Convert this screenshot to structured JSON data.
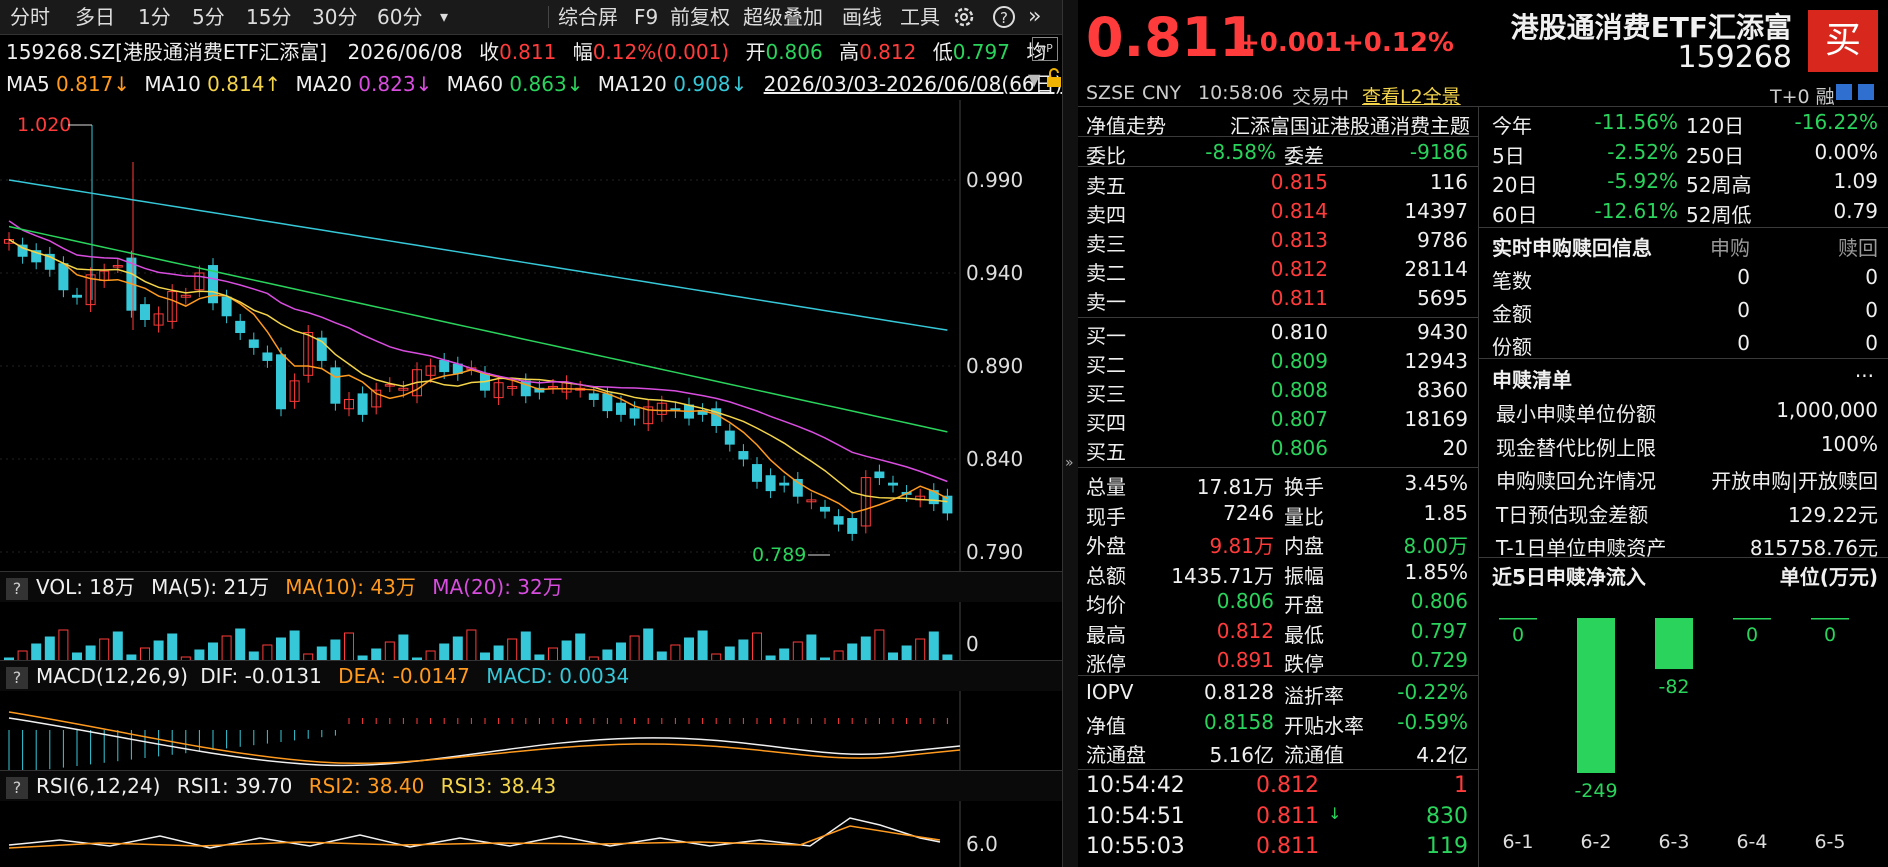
{
  "toolbar": {
    "items": [
      "分时",
      "多日",
      "1分",
      "5分",
      "15分",
      "30分",
      "60分",
      "▾",
      "综合屏",
      "F9",
      "前复权",
      "超级叠加",
      "画线",
      "工具"
    ]
  },
  "quote_line": {
    "code": "159268.SZ[港股通消费ETF汇添富]",
    "date": "2026/06/08",
    "close_label": "收",
    "close": "0.811",
    "amp_label": "幅",
    "amp": "0.12%(0.001)",
    "open_label": "开",
    "open": "0.806",
    "high_label": "高",
    "high": "0.812",
    "low_label": "低",
    "low": "0.797",
    "avg_label": "均"
  },
  "ma_line": {
    "ma5_label": "MA5",
    "ma5": "0.817↓",
    "ma10_label": "MA10",
    "ma10": "0.814↑",
    "ma20_label": "MA20",
    "ma20": "0.823↓",
    "ma60_label": "MA60",
    "ma60": "0.863↓",
    "ma120_label": "MA120",
    "ma120": "0.908↓",
    "range": "2026/03/03-2026/06/08(66日)"
  },
  "price_axis": [
    "0.990",
    "0.940",
    "0.890",
    "0.840",
    "0.790"
  ],
  "max_mark": "1.020",
  "min_mark": "0.789",
  "vol_panel": {
    "q": "?",
    "label": "VOL: 18万",
    "ma5": "MA(5): 21万",
    "ma10": "MA(10): 43万",
    "ma20": "MA(20): 32万",
    "axis": "0"
  },
  "macd_panel": {
    "q": "?",
    "label": "MACD(12,26,9)",
    "dif": "DIF: -0.0131",
    "dea": "DEA: -0.0147",
    "macd": "MACD: 0.0034"
  },
  "rsi_panel": {
    "q": "?",
    "label": "RSI(6,12,24)",
    "rsi1": "RSI1: 39.70",
    "rsi2": "RSI2: 38.40",
    "rsi3": "RSI3: 38.43",
    "axis": "6.0"
  },
  "header": {
    "price": "0.811",
    "change": "+0.001",
    "pct": "+0.12%",
    "name": "港股通消费ETF汇添富",
    "code": "159268",
    "buy": "买",
    "exchange": "SZSE",
    "currency": "CNY",
    "time": "10:58:06",
    "status": "交易中",
    "l2": "查看L2全景",
    "t0": "T+0 融"
  },
  "nav_row": {
    "label": "净值走势",
    "index": "汇添富国证港股通消费主题"
  },
  "wei": {
    "ratio_label": "委比",
    "ratio": "-8.58%",
    "diff_label": "委差",
    "diff": "-9186"
  },
  "asks": [
    {
      "label": "卖五",
      "price": "0.815",
      "vol": "116"
    },
    {
      "label": "卖四",
      "price": "0.814",
      "vol": "14397"
    },
    {
      "label": "卖三",
      "price": "0.813",
      "vol": "9786"
    },
    {
      "label": "卖二",
      "price": "0.812",
      "vol": "28114"
    },
    {
      "label": "卖一",
      "price": "0.811",
      "vol": "5695"
    }
  ],
  "bids": [
    {
      "label": "买一",
      "price": "0.810",
      "vol": "9430"
    },
    {
      "label": "买二",
      "price": "0.809",
      "vol": "12943"
    },
    {
      "label": "买三",
      "price": "0.808",
      "vol": "8360"
    },
    {
      "label": "买四",
      "price": "0.807",
      "vol": "18169"
    },
    {
      "label": "买五",
      "price": "0.806",
      "vol": "20"
    }
  ],
  "stats": [
    {
      "l1": "总量",
      "v1": "17.81万",
      "l2": "换手",
      "v2": "3.45%"
    },
    {
      "l1": "现手",
      "v1": "7246",
      "l2": "量比",
      "v2": "1.85"
    },
    {
      "l1": "外盘",
      "v1": "9.81万",
      "l2": "内盘",
      "v2": "8.00万"
    },
    {
      "l1": "总额",
      "v1": "1435.71万",
      "l2": "振幅",
      "v2": "1.85%"
    },
    {
      "l1": "均价",
      "v1": "0.806",
      "l2": "开盘",
      "v2": "0.806"
    },
    {
      "l1": "最高",
      "v1": "0.812",
      "l2": "最低",
      "v2": "0.797"
    },
    {
      "l1": "涨停",
      "v1": "0.891",
      "l2": "跌停",
      "v2": "0.729"
    }
  ],
  "iopv": [
    {
      "l1": "IOPV",
      "v1": "0.8128",
      "l2": "溢折率",
      "v2": "-0.22%"
    },
    {
      "l1": "净值",
      "v1": "0.8158",
      "l2": "开贴水率",
      "v2": "-0.59%"
    },
    {
      "l1": "流通盘",
      "v1": "5.16亿",
      "l2": "流通值",
      "v2": "4.2亿"
    }
  ],
  "ticks": [
    {
      "time": "10:54:42",
      "price": "0.812",
      "arrow": "",
      "vol": "1"
    },
    {
      "time": "10:54:51",
      "price": "0.811",
      "arrow": "↓",
      "vol": "830"
    },
    {
      "time": "10:55:03",
      "price": "0.811",
      "arrow": "",
      "vol": "119"
    }
  ],
  "perf": [
    {
      "l1": "今年",
      "v1": "-11.56%",
      "l2": "120日",
      "v2": "-16.22%"
    },
    {
      "l1": "5日",
      "v1": "-2.52%",
      "l2": "250日",
      "v2": "0.00%"
    },
    {
      "l1": "20日",
      "v1": "-5.92%",
      "l2": "52周高",
      "v2": "1.09"
    },
    {
      "l1": "60日",
      "v1": "-12.61%",
      "l2": "52周低",
      "v2": "0.79"
    }
  ],
  "realtime": {
    "title": "实时申购赎回信息",
    "col1": "申购",
    "col2": "赎回",
    "rows": [
      {
        "l": "笔数",
        "a": "0",
        "b": "0"
      },
      {
        "l": "金额",
        "a": "0",
        "b": "0"
      },
      {
        "l": "份额",
        "a": "0",
        "b": "0"
      }
    ]
  },
  "list": {
    "title": "申赎清单",
    "more": "···",
    "rows": [
      {
        "l": "最小申赎单位份额",
        "v": "1,000,000"
      },
      {
        "l": "现金替代比例上限",
        "v": "100%"
      },
      {
        "l": "申购赎回允许情况",
        "v": "开放申购|开放赎回"
      },
      {
        "l": "T日预估现金差额",
        "v": "129.22元"
      },
      {
        "l": "T-1日单位申赎资产",
        "v": "815758.76元"
      }
    ]
  },
  "flow": {
    "title": "近5日申赎净流入",
    "unit": "单位(万元)",
    "days": [
      "6-1",
      "6-2",
      "6-3",
      "6-4",
      "6-5"
    ],
    "values": [
      0,
      -249,
      -82,
      0,
      0
    ]
  },
  "colors": {
    "up": "#ff3b3b",
    "down": "#2ad45c",
    "teal": "#36c8d8",
    "buy": "#d8281e"
  }
}
